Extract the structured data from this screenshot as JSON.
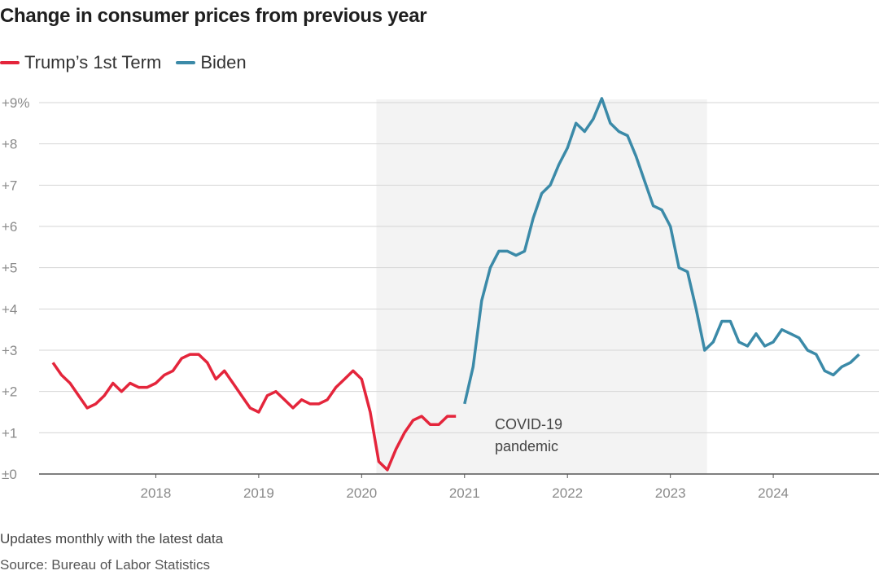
{
  "title": "Change in consumer prices from previous year",
  "note": "Updates monthly with the latest data",
  "source": "Source: Bureau of Labor Statistics",
  "colors": {
    "trump": "#e4253b",
    "biden": "#3b8aa8",
    "shade": "#f3f3f3",
    "grid": "#d6d6d6",
    "axis": "#555555",
    "tick": "#8a8a8a"
  },
  "chart_data": {
    "type": "line",
    "title": "Change in consumer prices from previous year",
    "xlabel": "",
    "ylabel": "",
    "ylim": [
      0,
      9
    ],
    "xlim": [
      "2017-01",
      "2024-12"
    ],
    "grid": true,
    "legend": "top-left",
    "y_ticks": [
      {
        "value": 0,
        "label": "±0"
      },
      {
        "value": 1,
        "label": "+1"
      },
      {
        "value": 2,
        "label": "+2"
      },
      {
        "value": 3,
        "label": "+3"
      },
      {
        "value": 4,
        "label": "+4"
      },
      {
        "value": 5,
        "label": "+5"
      },
      {
        "value": 6,
        "label": "+6"
      },
      {
        "value": 7,
        "label": "+7"
      },
      {
        "value": 8,
        "label": "+8"
      },
      {
        "value": 9,
        "label": "+9%"
      }
    ],
    "x_ticks": [
      {
        "value": "2018-01",
        "label": "2018"
      },
      {
        "value": "2019-01",
        "label": "2019"
      },
      {
        "value": "2020-01",
        "label": "2020"
      },
      {
        "value": "2021-01",
        "label": "2021"
      },
      {
        "value": "2022-01",
        "label": "2022"
      },
      {
        "value": "2023-01",
        "label": "2023"
      },
      {
        "value": "2024-01",
        "label": "2024"
      }
    ],
    "shaded_region": {
      "start": "2020-03",
      "end": "2023-05",
      "label_lines": [
        "COVID-19",
        "pandemic"
      ]
    },
    "series": [
      {
        "name": "Trump’s 1st Term",
        "color": "#e4253b",
        "start": "2017-01",
        "values": [
          2.7,
          2.4,
          2.2,
          1.9,
          1.6,
          1.7,
          1.9,
          2.2,
          2.0,
          2.2,
          2.1,
          2.1,
          2.2,
          2.4,
          2.5,
          2.8,
          2.9,
          2.9,
          2.7,
          2.3,
          2.5,
          2.2,
          1.9,
          1.6,
          1.5,
          1.9,
          2.0,
          1.8,
          1.6,
          1.8,
          1.7,
          1.7,
          1.8,
          2.1,
          2.3,
          2.5,
          2.3,
          1.5,
          0.3,
          0.1,
          0.6,
          1.0,
          1.3,
          1.4,
          1.2,
          1.2,
          1.4,
          1.4
        ]
      },
      {
        "name": "Biden",
        "color": "#3b8aa8",
        "start": "2021-01",
        "values": [
          1.7,
          2.6,
          4.2,
          5.0,
          5.4,
          5.4,
          5.3,
          5.4,
          6.2,
          6.8,
          7.0,
          7.5,
          7.9,
          8.5,
          8.3,
          8.6,
          9.1,
          8.5,
          8.3,
          8.2,
          7.7,
          7.1,
          6.5,
          6.4,
          6.0,
          5.0,
          4.9,
          4.0,
          3.0,
          3.2,
          3.7,
          3.7,
          3.2,
          3.1,
          3.4,
          3.1,
          3.2,
          3.5,
          3.4,
          3.3,
          3.0,
          2.9,
          2.5,
          2.4,
          2.6,
          2.7,
          2.9
        ]
      }
    ]
  }
}
